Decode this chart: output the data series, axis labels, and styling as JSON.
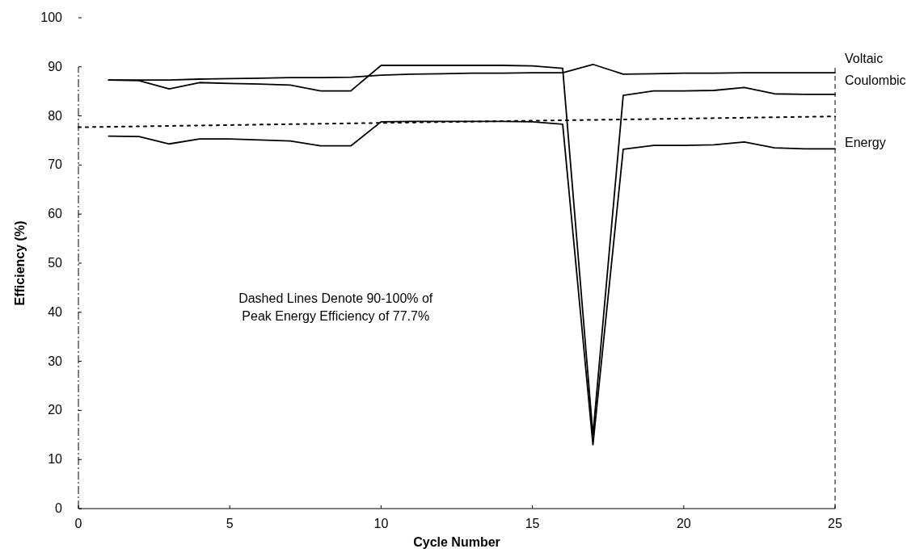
{
  "chart_data": {
    "type": "line",
    "xlabel": "Cycle Number",
    "ylabel": "Efficiency (%)",
    "x": [
      1,
      2,
      3,
      4,
      5,
      6,
      7,
      8,
      9,
      10,
      11,
      12,
      13,
      14,
      15,
      16,
      17,
      18,
      19,
      20,
      21,
      22,
      23,
      24,
      25
    ],
    "series": [
      {
        "name": "Voltaic",
        "color": "#000000",
        "values": [
          87.3,
          87.3,
          87.3,
          87.5,
          87.6,
          87.7,
          87.8,
          87.8,
          87.9,
          88.3,
          88.5,
          88.6,
          88.7,
          88.7,
          88.8,
          88.8,
          90.5,
          88.5,
          88.6,
          88.7,
          88.7,
          88.8,
          88.8,
          88.8,
          88.8
        ]
      },
      {
        "name": "Coulombic",
        "color": "#000000",
        "values": [
          87.3,
          87.2,
          85.5,
          86.8,
          86.6,
          86.5,
          86.3,
          85.1,
          85.1,
          90.3,
          90.3,
          90.3,
          90.3,
          90.3,
          90.2,
          89.7,
          15,
          84.2,
          85.1,
          85.1,
          85.2,
          85.8,
          84.5,
          84.4,
          84.4
        ]
      },
      {
        "name": "Energy",
        "color": "#000000",
        "values": [
          75.9,
          75.8,
          74.3,
          75.3,
          75.3,
          75.1,
          74.9,
          73.9,
          73.9,
          78.8,
          78.9,
          78.9,
          78.9,
          78.9,
          78.8,
          78.3,
          13,
          73.2,
          74.0,
          74.0,
          74.1,
          74.7,
          73.5,
          73.3,
          73.3
        ]
      },
      {
        "type": "line",
        "line_style": "dotted",
        "color": "#000000",
        "x": [
          0,
          25
        ],
        "values": [
          77.7,
          79.9
        ]
      }
    ],
    "xlim": [
      0,
      25
    ],
    "xticks": [
      0,
      5,
      10,
      15,
      20,
      25
    ],
    "ylim": [
      0,
      100
    ],
    "yticks": [
      0,
      10,
      20,
      30,
      40,
      50,
      60,
      70,
      80,
      90,
      100
    ],
    "grid": false,
    "marker": "none",
    "line_style": "solid",
    "annotations": [
      "Dashed Lines Denote 90-100% of\nPeak Energy Efficiency of 77.7%"
    ]
  }
}
